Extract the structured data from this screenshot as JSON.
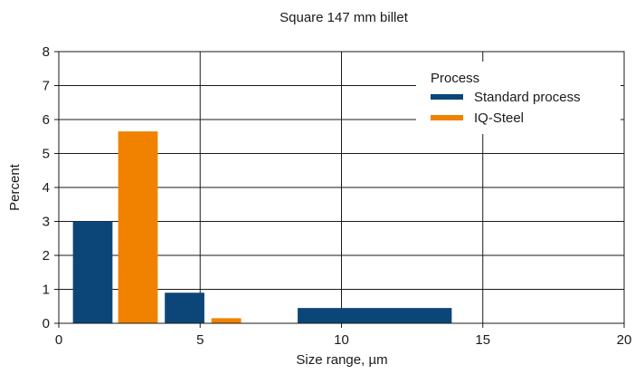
{
  "chart_data": {
    "type": "bar",
    "title": "Square 147 mm billet",
    "xlabel": "Size range, µm",
    "ylabel": "Percent",
    "xlim": [
      0,
      20
    ],
    "ylim": [
      0,
      8
    ],
    "x_ticks": [
      0,
      5,
      10,
      15,
      20
    ],
    "y_ticks": [
      0,
      1,
      2,
      3,
      4,
      5,
      6,
      7,
      8
    ],
    "grid": true,
    "legend": {
      "title": "Process",
      "placement": "top-right"
    },
    "series": [
      {
        "name": "Standard process",
        "color": "#0c4678",
        "bars": [
          {
            "x_start": 0.5,
            "x_end": 1.9,
            "value": 3.0
          },
          {
            "x_start": 3.75,
            "x_end": 5.15,
            "value": 0.9
          },
          {
            "x_start": 8.45,
            "x_end": 13.9,
            "value": 0.45
          }
        ]
      },
      {
        "name": "IQ-Steel",
        "color": "#f08200",
        "bars": [
          {
            "x_start": 2.1,
            "x_end": 3.5,
            "value": 5.65
          },
          {
            "x_start": 5.4,
            "x_end": 6.45,
            "value": 0.15
          }
        ]
      }
    ]
  }
}
